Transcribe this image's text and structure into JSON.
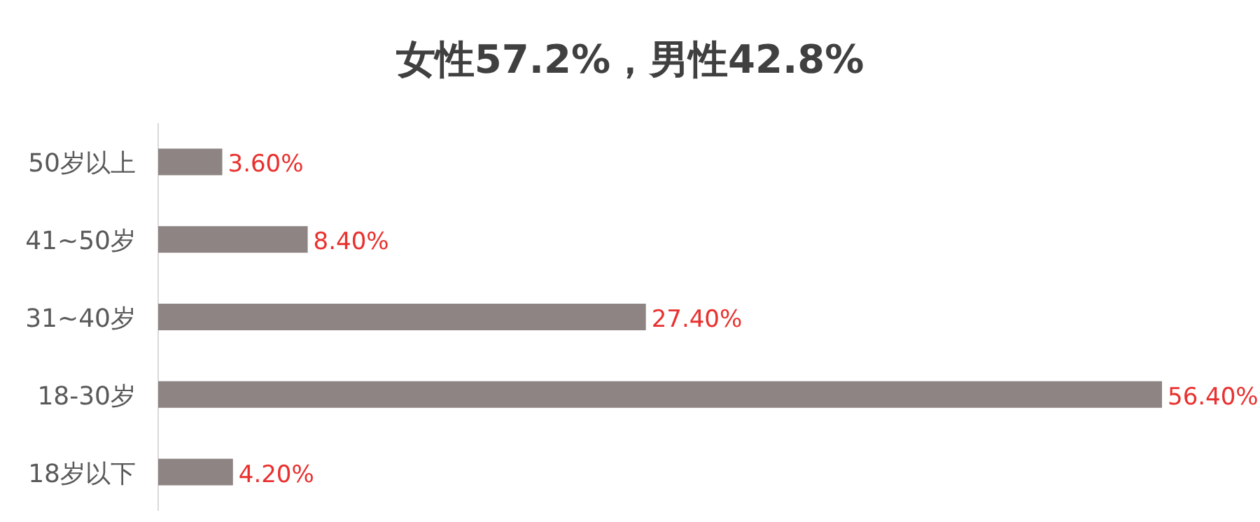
{
  "chart_data": {
    "type": "bar",
    "orientation": "horizontal",
    "title": "女性57.2%，男性42.8%",
    "categories": [
      "50岁以上",
      "41~50岁",
      "31~40岁",
      "18-30岁",
      "18岁以下"
    ],
    "values": [
      3.6,
      8.4,
      27.4,
      56.4,
      4.2
    ],
    "value_labels": [
      "3.60%",
      "8.40%",
      "27.40%",
      "56.40%",
      "4.20%"
    ],
    "color": "#8d8483"
  }
}
